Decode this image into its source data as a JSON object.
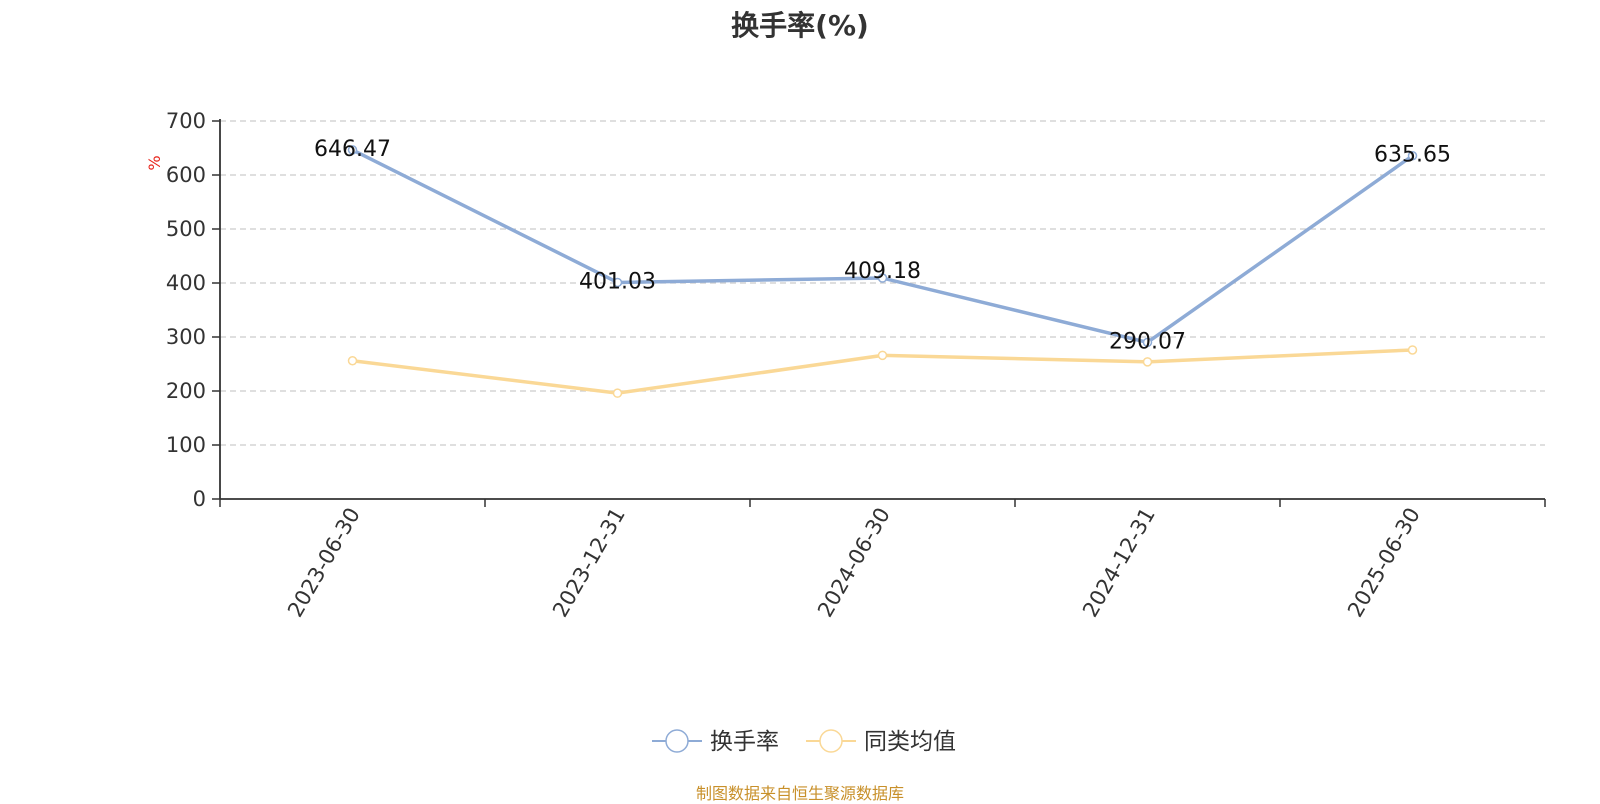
{
  "chart_data": {
    "type": "line",
    "title": "换手率(%)",
    "ylabel": "%",
    "xlabel": "",
    "categories": [
      "2023-06-30",
      "2023-12-31",
      "2024-06-30",
      "2024-12-31",
      "2025-06-30"
    ],
    "ylim": [
      0,
      700
    ],
    "yticks": [
      0,
      100,
      200,
      300,
      400,
      500,
      600,
      700
    ],
    "grid": true,
    "legend_position": "bottom",
    "series": [
      {
        "name": "换手率",
        "color": "#8eabd6",
        "values": [
          646.47,
          401.03,
          409.18,
          290.07,
          635.65
        ],
        "show_labels": true
      },
      {
        "name": "同类均值",
        "color": "#fad896",
        "values": [
          256,
          196,
          266,
          254,
          276
        ],
        "show_labels": false
      }
    ],
    "labels": [
      "646.47",
      "401.03",
      "409.18",
      "290.07",
      "635.65"
    ]
  },
  "footer": {
    "source": "制图数据来自恒生聚源数据库"
  }
}
